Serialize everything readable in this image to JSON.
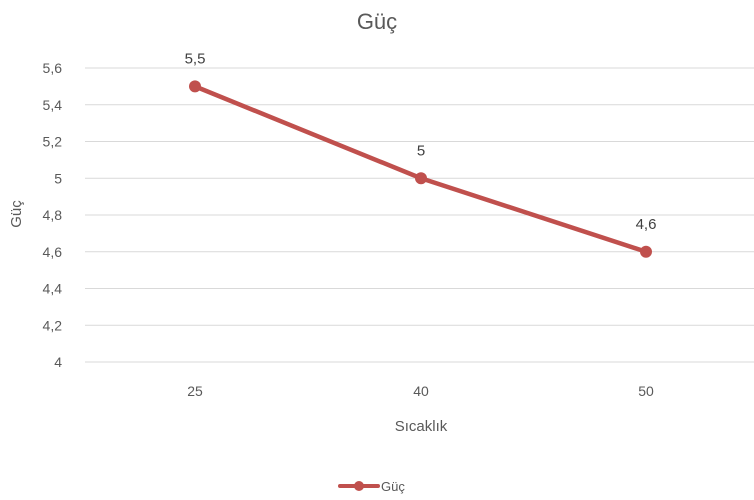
{
  "chart_data": {
    "type": "line",
    "title": "Güç",
    "xlabel": "Sıcaklık",
    "ylabel": "Güç",
    "categories": [
      "25",
      "40",
      "50"
    ],
    "series": [
      {
        "name": "Güç",
        "values": [
          5.5,
          5.0,
          4.6
        ],
        "data_labels": [
          "5,5",
          "5",
          "4,6"
        ],
        "color": "#c0504d"
      }
    ],
    "ylim": [
      4,
      5.6
    ],
    "yticks": [
      4,
      4.2,
      4.4,
      4.6,
      4.8,
      5,
      5.2,
      5.4,
      5.6
    ],
    "ytick_labels": [
      "4",
      "4,2",
      "4,4",
      "4,6",
      "4,8",
      "5",
      "5,2",
      "5,4",
      "5,6"
    ],
    "grid": true,
    "legend_position": "bottom",
    "gridline_color": "#d9d9d9",
    "text_color": "#595959"
  }
}
